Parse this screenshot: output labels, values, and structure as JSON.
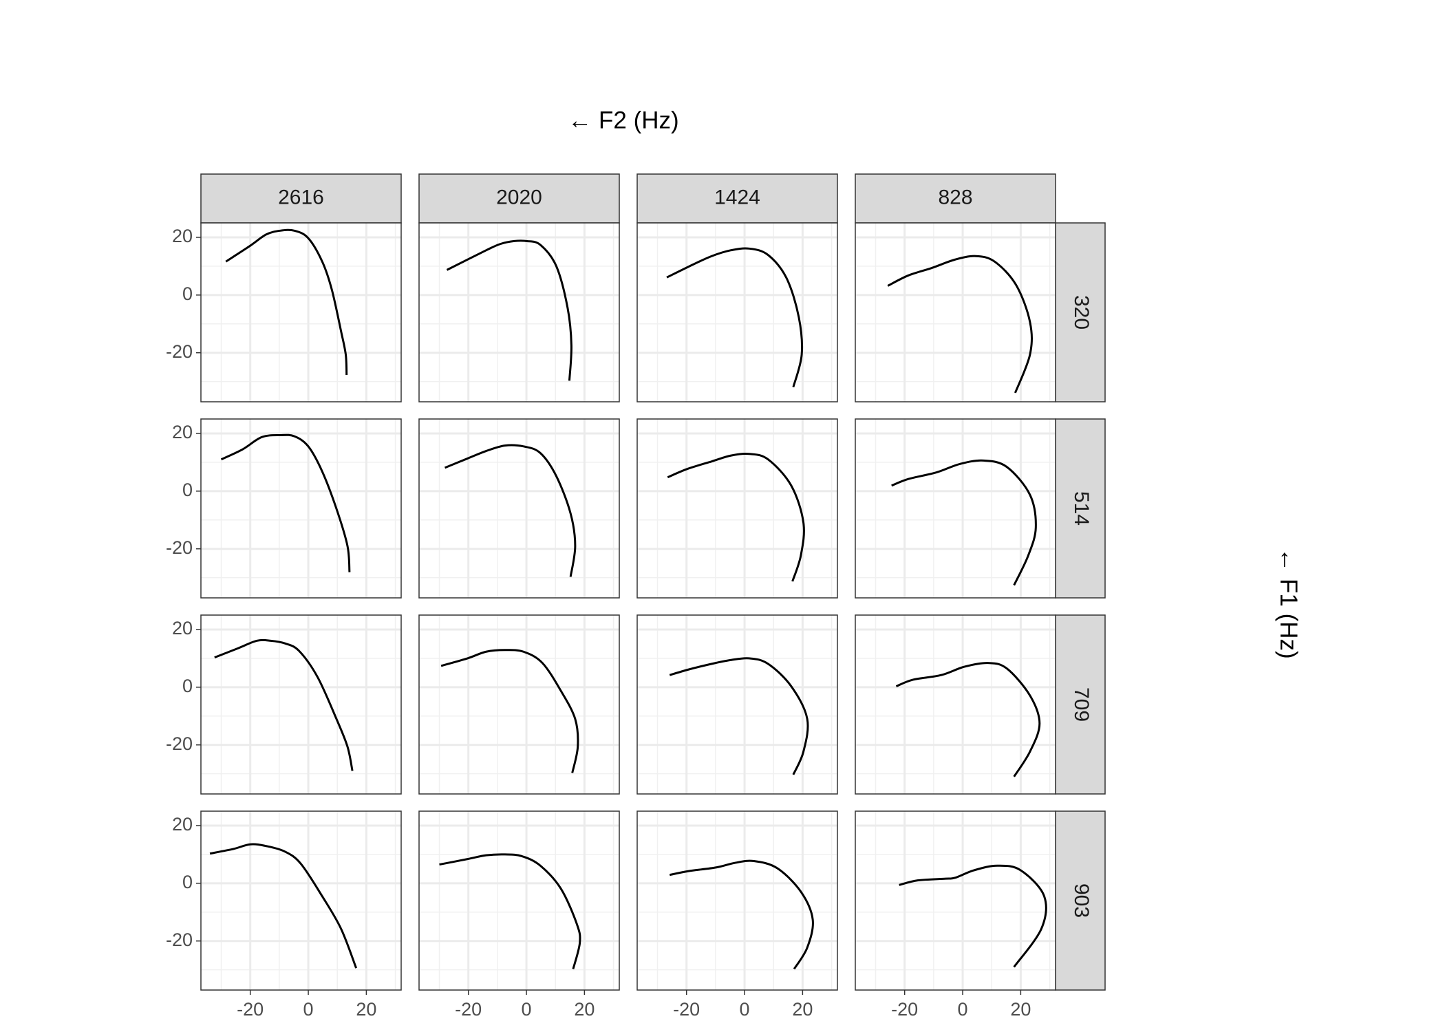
{
  "chart_data": {
    "type": "line",
    "title": "← F2 (Hz)",
    "y_label": "← F1 (Hz)",
    "col_labels": [
      "2616",
      "2020",
      "1424",
      "828"
    ],
    "row_labels": [
      "320",
      "514",
      "709",
      "903"
    ],
    "xlim": [
      -37,
      32
    ],
    "ylim": [
      -37,
      25
    ],
    "xticks": [
      -20,
      0,
      20
    ],
    "yticks": [
      -20,
      0,
      20
    ],
    "x_minor_breaks": [
      -30,
      -10,
      10,
      30
    ],
    "y_minor_breaks": [
      -30,
      -10,
      10
    ],
    "grid": true,
    "color": "#000000",
    "panels": [
      [
        {
          "x": [
            -28.4,
            -20,
            -14.5,
            -9.7,
            -4.8,
            0,
            4.8,
            8.1,
            11.3,
            12.9,
            13.2
          ],
          "y": [
            11.6,
            17.1,
            21,
            22.3,
            22.3,
            19.7,
            11.6,
            1.9,
            -12.6,
            -20.6,
            -27.7
          ]
        },
        {
          "x": [
            -27.4,
            -13.9,
            -9,
            -4.2,
            0,
            4.8,
            10.3,
            14.2,
            15.5,
            14.8
          ],
          "y": [
            8.7,
            15.5,
            17.7,
            18.7,
            18.7,
            17.4,
            10,
            -4.5,
            -17.4,
            -29.7
          ]
        },
        {
          "x": [
            -26.8,
            -17.7,
            -11.3,
            -4.8,
            1.6,
            8.1,
            14.5,
            18.7,
            19.7,
            16.8
          ],
          "y": [
            6.1,
            10.6,
            13.5,
            15.5,
            16.1,
            13.9,
            5.8,
            -7.7,
            -20.6,
            -31.9
          ]
        },
        {
          "x": [
            -25.8,
            -18.7,
            -10.6,
            -2.6,
            4.5,
            11,
            18.4,
            23.2,
            23.2,
            18.1
          ],
          "y": [
            3.2,
            6.8,
            9.4,
            12.3,
            13.5,
            11.6,
            3.5,
            -9.4,
            -20.6,
            -33.9
          ]
        }
      ],
      [
        {
          "x": [
            -30,
            -22.6,
            -16.1,
            -9.7,
            -4.8,
            0,
            4.8,
            9.7,
            13.5,
            14.2
          ],
          "y": [
            11,
            14.5,
            18.7,
            19.4,
            19,
            15.5,
            6.8,
            -6.1,
            -19,
            -28.1
          ]
        },
        {
          "x": [
            -28.1,
            -20.3,
            -13.9,
            -7.4,
            -1,
            4.8,
            10.3,
            15.2,
            16.8,
            15.2
          ],
          "y": [
            8.1,
            11.3,
            13.9,
            15.8,
            15.5,
            13.2,
            5.2,
            -7.7,
            -19,
            -29.7
          ]
        },
        {
          "x": [
            -26.5,
            -19.7,
            -11.3,
            -4.8,
            1.6,
            8.1,
            16.1,
            20.3,
            19.4,
            16.5
          ],
          "y": [
            4.8,
            7.7,
            10.3,
            12.3,
            12.9,
            11,
            1.9,
            -11,
            -22.3,
            -31.3
          ]
        },
        {
          "x": [
            -24.5,
            -18.7,
            -9,
            -1,
            7.1,
            15.2,
            23.2,
            25.2,
            22.6,
            17.7
          ],
          "y": [
            1.9,
            4.2,
            6.5,
            9.4,
            10.6,
            8.4,
            -1.3,
            -12.6,
            -22.3,
            -32.6
          ]
        }
      ],
      [
        {
          "x": [
            -32.3,
            -24.2,
            -17.7,
            -12.9,
            -8.1,
            -3.2,
            3.2,
            9.7,
            13.5,
            15.2
          ],
          "y": [
            10.3,
            13.5,
            16.1,
            16.1,
            15.2,
            12.6,
            3.5,
            -11,
            -20.6,
            -29
          ]
        },
        {
          "x": [
            -29.4,
            -20.3,
            -13.9,
            -7.4,
            -1,
            5.5,
            11.9,
            16.8,
            17.7,
            15.8
          ],
          "y": [
            7.4,
            10,
            12.3,
            12.9,
            12.3,
            8.4,
            -1.3,
            -11,
            -20.6,
            -29.7
          ]
        },
        {
          "x": [
            -25.8,
            -19.4,
            -11.3,
            -4.8,
            1.6,
            8.1,
            16.1,
            21.6,
            20.3,
            16.8
          ],
          "y": [
            4.2,
            6.1,
            8.1,
            9.4,
            10,
            8.1,
            0.3,
            -11,
            -22.3,
            -30.3
          ]
        },
        {
          "x": [
            -22.9,
            -17.1,
            -7.4,
            0.6,
            8.7,
            15.2,
            23.2,
            26.5,
            23.2,
            17.7
          ],
          "y": [
            0.3,
            2.6,
            4.2,
            7.1,
            8.4,
            6.5,
            -2.9,
            -12.6,
            -22.3,
            -31
          ]
        }
      ],
      [
        {
          "x": [
            -33.9,
            -25.8,
            -20,
            -14.5,
            -8.1,
            -2.6,
            4.8,
            11.3,
            16.5
          ],
          "y": [
            10.3,
            11.9,
            13.5,
            12.9,
            11,
            6.8,
            -4.5,
            -15.8,
            -29.4
          ]
        },
        {
          "x": [
            -30,
            -20.3,
            -13.9,
            -7.4,
            -1.6,
            4.8,
            11.9,
            17.4,
            18.4,
            16.1
          ],
          "y": [
            6.5,
            8.4,
            9.7,
            10,
            9.4,
            6.1,
            -1.9,
            -14.2,
            -20.6,
            -29.7
          ]
        },
        {
          "x": [
            -25.8,
            -19.4,
            -9.7,
            -3.2,
            3.2,
            11.3,
            19.4,
            23.5,
            21.6,
            17.1
          ],
          "y": [
            2.9,
            4.2,
            5.5,
            7.1,
            7.7,
            5.2,
            -2.9,
            -12.6,
            -22.3,
            -29.7
          ]
        },
        {
          "x": [
            -21.9,
            -15.5,
            -5.8,
            -2.6,
            3.9,
            11.9,
            20,
            28.1,
            27.1,
            17.7
          ],
          "y": [
            -0.6,
            1,
            1.6,
            1.9,
            4.5,
            6.1,
            4.5,
            -4.5,
            -15.8,
            -29
          ]
        }
      ]
    ]
  }
}
